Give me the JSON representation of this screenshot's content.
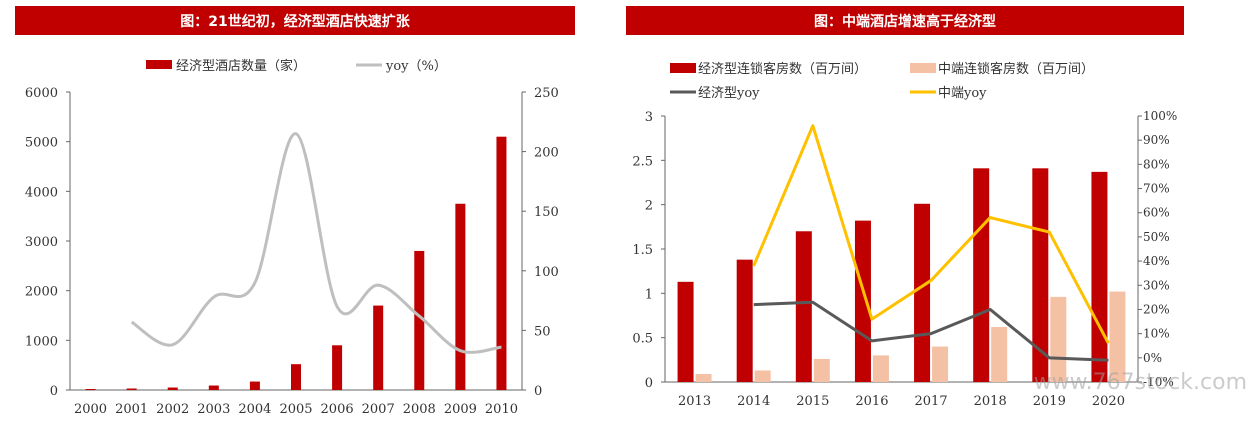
{
  "chart_data": [
    {
      "type": "bar",
      "title": "图：21世纪初，经济型酒店快速扩张",
      "categories": [
        "2000",
        "2001",
        "2002",
        "2003",
        "2004",
        "2005",
        "2006",
        "2007",
        "2008",
        "2009",
        "2010"
      ],
      "series": [
        {
          "name": "经济型酒店数量（家）",
          "axis": "left",
          "type": "bar",
          "color": "#c00000",
          "values": [
            20,
            30,
            50,
            90,
            170,
            520,
            900,
            1700,
            2800,
            3750,
            5100
          ]
        },
        {
          "name": "yoy（%）",
          "axis": "right",
          "type": "line",
          "color": "#bfbfbf",
          "smooth": true,
          "values": [
            null,
            57,
            38,
            78,
            90,
            215,
            70,
            88,
            62,
            33,
            36
          ]
        }
      ],
      "y_left": {
        "min": 0,
        "max": 6000,
        "ticks": [
          "0",
          "1000",
          "2000",
          "3000",
          "4000",
          "5000",
          "6000"
        ]
      },
      "y_right": {
        "min": 0,
        "max": 250,
        "ticks": [
          "0",
          "50",
          "100",
          "150",
          "200",
          "250"
        ]
      }
    },
    {
      "type": "bar",
      "title": "图：中端酒店增速高于经济型",
      "categories": [
        "2013",
        "2014",
        "2015",
        "2016",
        "2017",
        "2018",
        "2019",
        "2020"
      ],
      "series": [
        {
          "name": "经济型连锁客房数（百万间）",
          "axis": "left",
          "type": "bar",
          "color": "#c00000",
          "values": [
            1.13,
            1.38,
            1.7,
            1.82,
            2.01,
            2.41,
            2.41,
            2.37
          ]
        },
        {
          "name": "中端连锁客房数（百万间）",
          "axis": "left",
          "type": "bar",
          "color": "#f4c1a5",
          "values": [
            0.09,
            0.13,
            0.26,
            0.3,
            0.4,
            0.62,
            0.96,
            1.02
          ]
        },
        {
          "name": "经济型yoy",
          "axis": "right",
          "type": "line",
          "color": "#595959",
          "values": [
            null,
            22,
            23,
            7,
            10,
            20,
            0,
            -1
          ]
        },
        {
          "name": "中端yoy",
          "axis": "right",
          "type": "line",
          "color": "#ffc000",
          "values": [
            null,
            38,
            96,
            16,
            32,
            58,
            52,
            6
          ]
        }
      ],
      "y_left": {
        "min": 0,
        "max": 3,
        "ticks": [
          "0",
          "0.5",
          "1",
          "1.5",
          "2",
          "2.5",
          "3"
        ]
      },
      "y_right": {
        "min": -10,
        "max": 100,
        "ticks": [
          "-10%",
          "0%",
          "10%",
          "20%",
          "30%",
          "40%",
          "50%",
          "60%",
          "70%",
          "80%",
          "90%",
          "100%"
        ]
      }
    }
  ],
  "watermark": "www.767stock.com"
}
